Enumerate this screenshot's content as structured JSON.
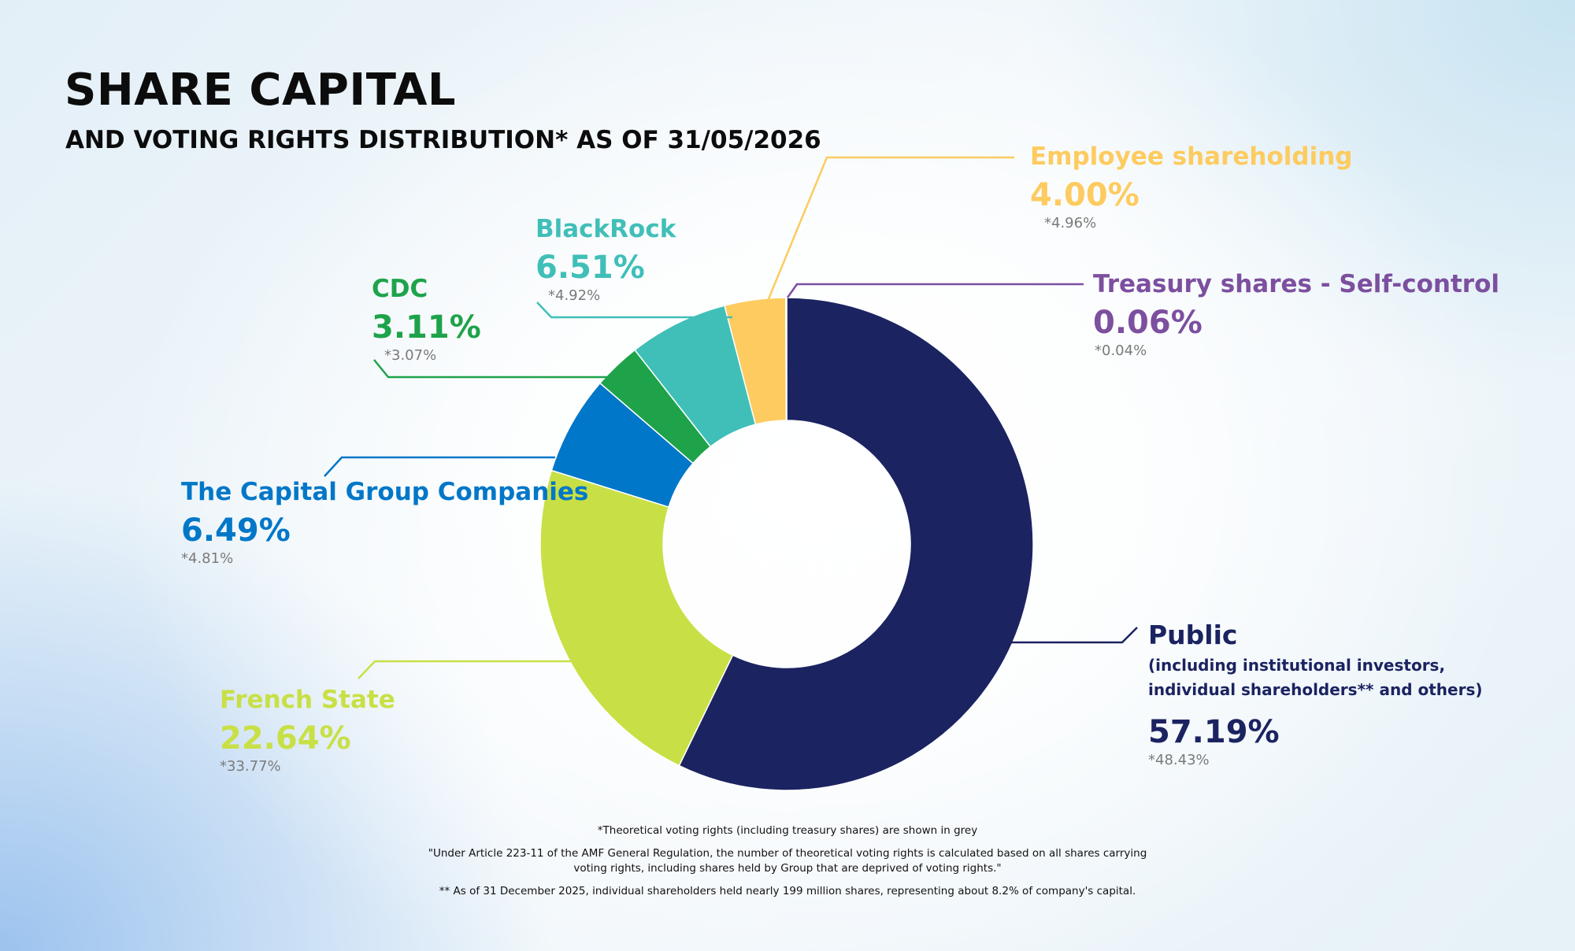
{
  "title": "SHARE CAPITAL",
  "subtitle": "AND VOTING RIGHTS DISTRIBUTION* AS OF 31/05/2026",
  "chart_data": {
    "type": "pie",
    "donut": true,
    "unit": "%",
    "slices": [
      {
        "name": "Public",
        "value": 57.19,
        "voting": "*48.43%",
        "color": "#1b2361"
      },
      {
        "name": "French State",
        "value": 22.64,
        "voting": "*33.77%",
        "color": "#c8e045"
      },
      {
        "name": "The Capital Group Companies",
        "value": 6.49,
        "voting": "*4.81%",
        "color": "#0077c8"
      },
      {
        "name": "CDC",
        "value": 3.11,
        "voting": "*3.07%",
        "color": "#1ea34a"
      },
      {
        "name": "BlackRock",
        "value": 6.51,
        "voting": "*4.92%",
        "color": "#40bfb8"
      },
      {
        "name": "Employee shareholding",
        "value": 4.0,
        "voting": "*4.96%",
        "color": "#fdcb5f"
      },
      {
        "name": "Treasury shares - Self-control",
        "value": 0.06,
        "voting": "*0.04%",
        "color": "#7c4f9f"
      }
    ]
  },
  "labels": {
    "public": {
      "name": "Public",
      "sub1": "(including institutional investors,",
      "sub2": "individual shareholders** and others)",
      "pct": "57.19%",
      "vote": "*48.43%"
    },
    "french_state": {
      "name": "French State",
      "pct": "22.64%",
      "vote": "*33.77%"
    },
    "capital_group": {
      "name": "The Capital Group Companies",
      "pct": "6.49%",
      "vote": "*4.81%"
    },
    "cdc": {
      "name": "CDC",
      "pct": "3.11%",
      "vote": "*3.07%"
    },
    "blackrock": {
      "name": "BlackRock",
      "pct": "6.51%",
      "vote": "*4.92%"
    },
    "employee": {
      "name": "Employee shareholding",
      "pct": "4.00%",
      "vote": "*4.96%"
    },
    "treasury": {
      "name": "Treasury shares - Self-control",
      "pct": "0.06%",
      "vote": "*0.04%"
    }
  },
  "colors": {
    "public": "#1b2361",
    "french_state": "#c8e045",
    "capital_group": "#0077c8",
    "cdc": "#1ea34a",
    "blackrock": "#40bfb8",
    "employee": "#fdcb5f",
    "treasury": "#7c4f9f"
  },
  "notes": {
    "n1": "*Theoretical voting rights (including treasury shares) are shown in grey",
    "n2a": "\"Under Article 223-11 of the AMF General Regulation, the number of theoretical voting rights is calculated based on all shares carrying",
    "n2b": "voting rights, including shares held by Group that are deprived of voting rights.\"",
    "n3": "** As of 31 December 2025, individual shareholders held nearly 199 million shares, representing about 8.2% of company's capital."
  }
}
